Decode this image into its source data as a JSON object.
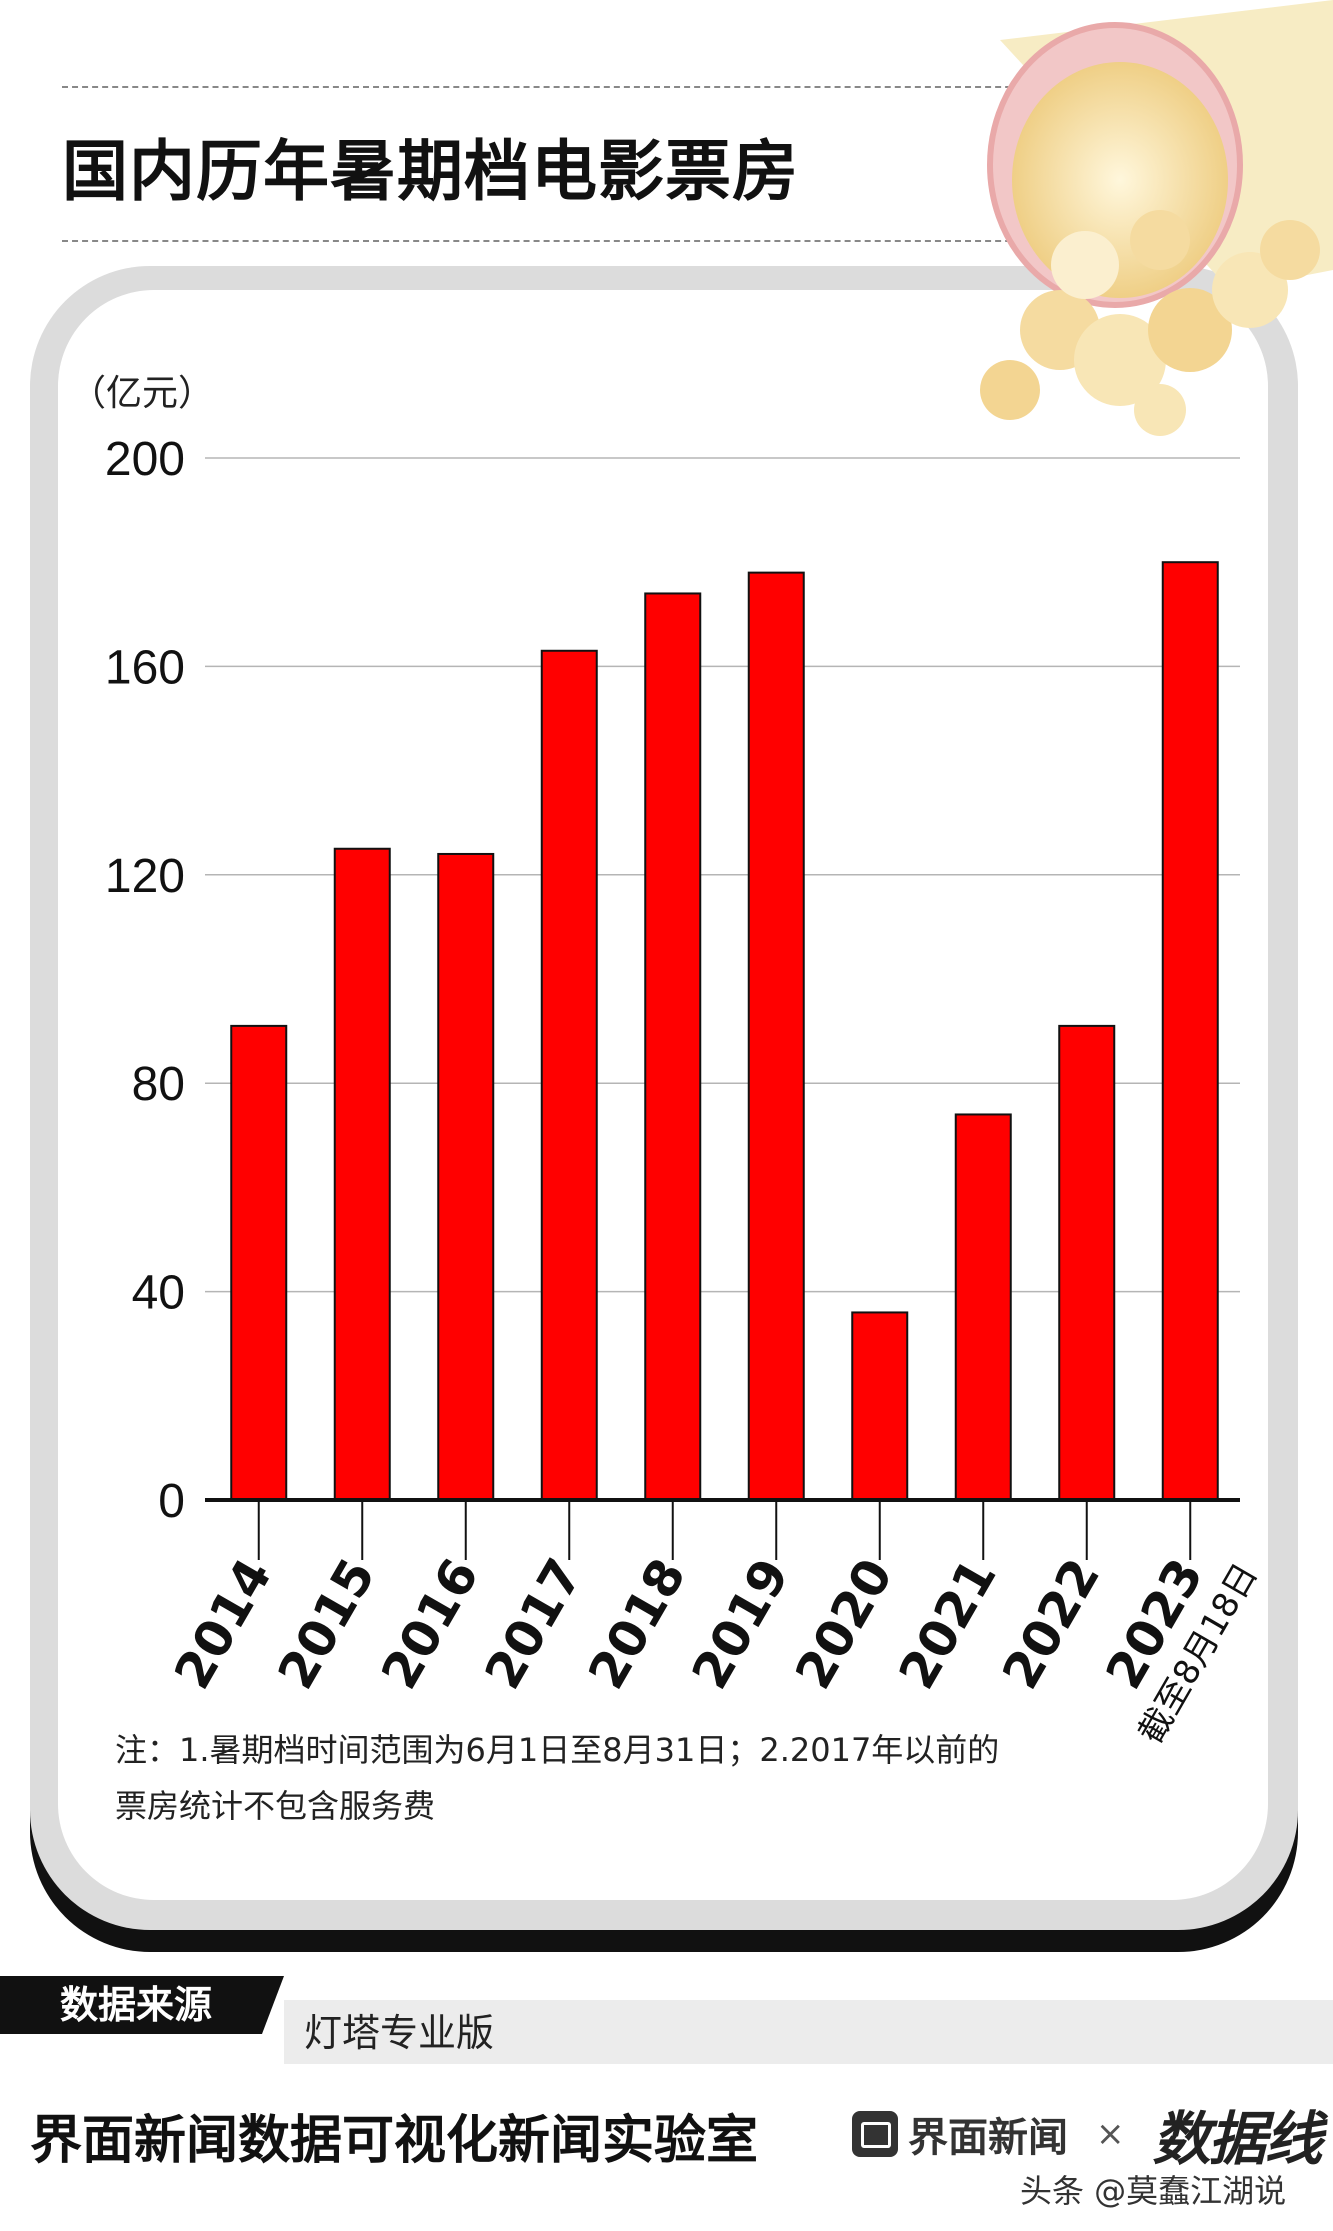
{
  "title": "国内历年暑期档电影票房",
  "chart_data": {
    "type": "bar",
    "unit_label": "（亿元）",
    "categories": [
      "2014",
      "2015",
      "2016",
      "2017",
      "2018",
      "2019",
      "2020",
      "2021",
      "2022",
      "2023"
    ],
    "category_notes": {
      "2023": "截至8月18日"
    },
    "values": [
      91,
      125,
      124,
      163,
      174,
      178,
      36,
      74,
      91,
      180
    ],
    "y_ticks": [
      "0",
      "40",
      "80",
      "120",
      "160",
      "200"
    ],
    "ylim": [
      0,
      200
    ],
    "grid": true,
    "bar_color": "#ff0000",
    "watermark": "数据线"
  },
  "note": {
    "line1": "注：1.暑期档时间范围为6月1日至8月31日；2.2017年以前的",
    "line2": "票房统计不包含服务费"
  },
  "source": {
    "label": "数据来源",
    "value": "灯塔专业版"
  },
  "footer": {
    "title": "界面新闻数据可视化新闻实验室",
    "brand": "界面新闻",
    "times": "×",
    "logo": "数据线",
    "byline": "头条 @莫蠢江湖说"
  },
  "colors": {
    "bar": "#ff0000",
    "card_border": "#dcdcdc",
    "text": "#111111"
  }
}
